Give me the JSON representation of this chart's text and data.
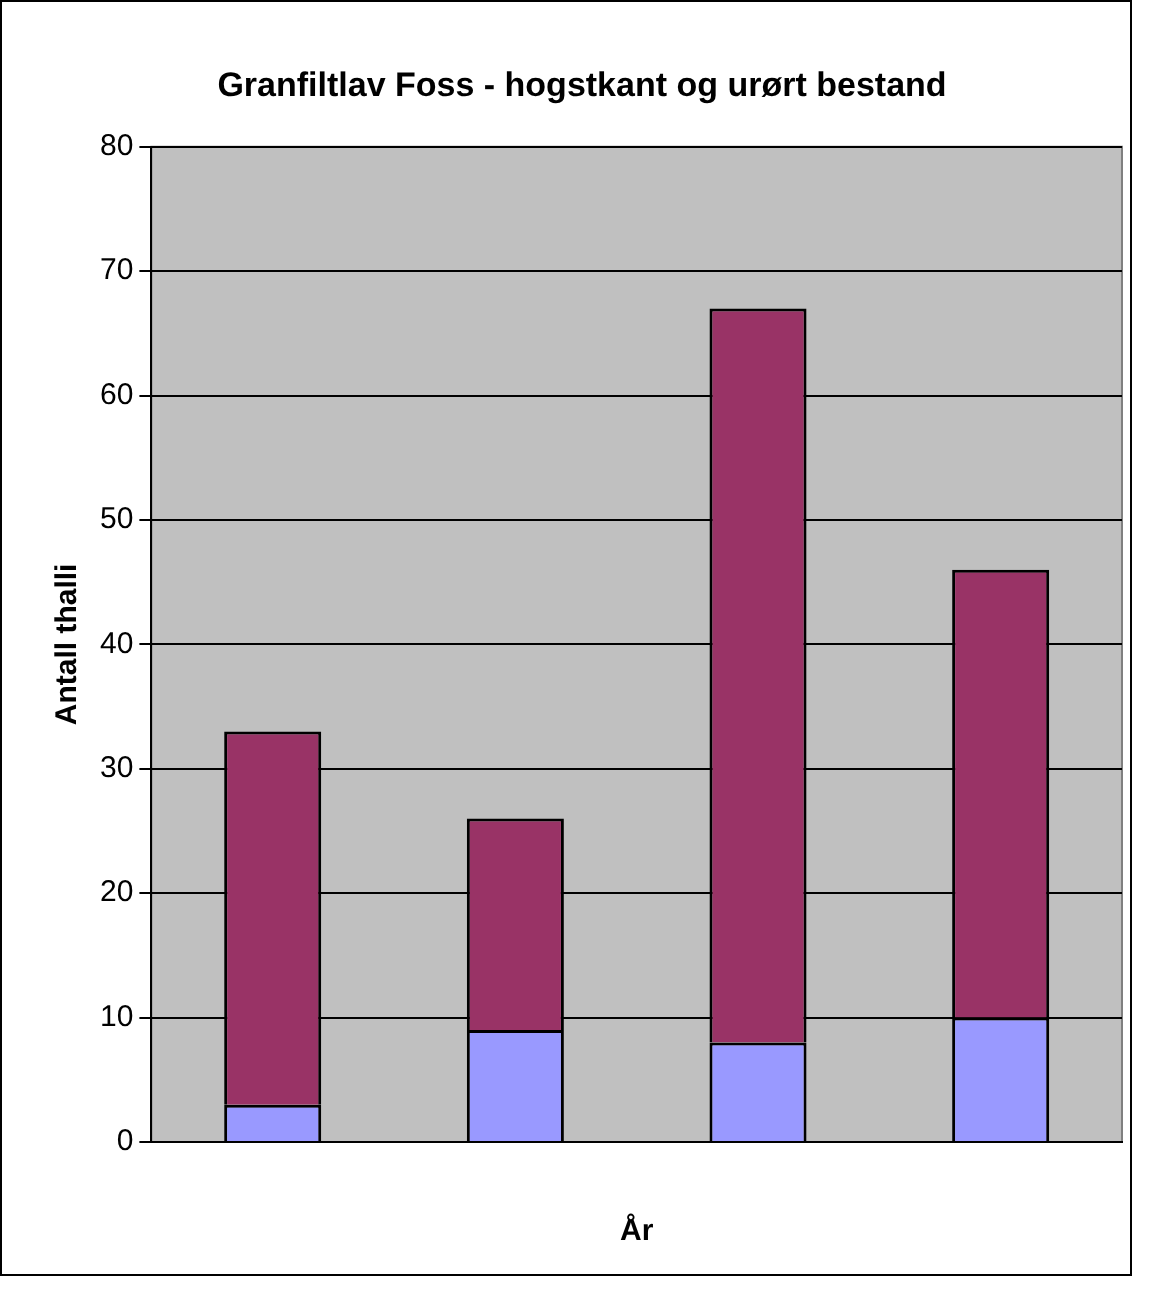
{
  "chart_data": {
    "type": "bar",
    "title": "Granfiltlav Foss - hogstkant og urørt bestand",
    "xlabel": "År",
    "ylabel": "Antall thalli",
    "categories": [
      null,
      null,
      null,
      null
    ],
    "stacked": true,
    "series": [
      {
        "color": "#9999ff",
        "values": [
          3,
          9,
          8,
          10
        ]
      },
      {
        "color": "#993366",
        "values": [
          30,
          17,
          59,
          36
        ]
      }
    ],
    "ylim": [
      0,
      80
    ],
    "yticks": [
      0,
      10,
      20,
      30,
      40,
      50,
      60,
      70,
      80
    ],
    "grid": "y",
    "legend": false
  }
}
